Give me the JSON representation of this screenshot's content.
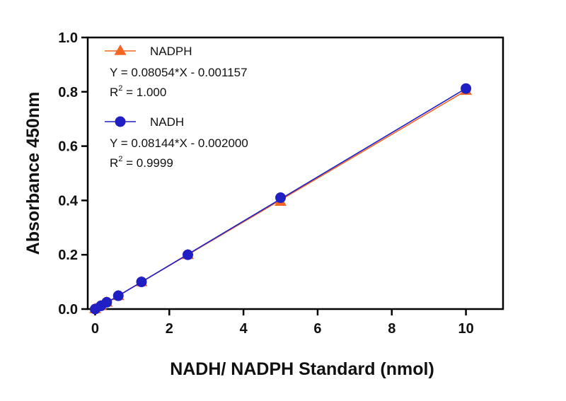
{
  "chart_data": {
    "type": "scatter",
    "xlabel": "NADH/ NADPH Standard (nmol)",
    "ylabel": "Absorbance 450nm",
    "xlim": [
      -0.2,
      11
    ],
    "ylim": [
      0,
      1.0
    ],
    "xticks": [
      0,
      2,
      4,
      6,
      8,
      10
    ],
    "yticks": [
      0.0,
      0.2,
      0.4,
      0.6,
      0.8,
      1.0
    ],
    "xtick_labels": [
      "0",
      "2",
      "4",
      "6",
      "8",
      "10"
    ],
    "ytick_labels": [
      "0.0",
      "0.2",
      "0.4",
      "0.6",
      "0.8",
      "1.0"
    ],
    "grid": false,
    "legend_position": "top-left",
    "series": [
      {
        "name": "NADPH",
        "marker": "triangle",
        "color": "#f26522",
        "x": [
          0,
          0.156,
          0.3125,
          0.625,
          1.25,
          2.5,
          5,
          10
        ],
        "y": [
          0.0,
          0.011,
          0.024,
          0.048,
          0.099,
          0.199,
          0.395,
          0.804
        ],
        "fit_slope": 0.08054,
        "fit_intercept": -0.001157,
        "equation": "Y = 0.08054*X - 0.001157",
        "r2_prefix": "R",
        "r2_sup": "2",
        "r2_value": " = 1.000"
      },
      {
        "name": "NADH",
        "marker": "circle",
        "color": "#1f1fc4",
        "x": [
          0,
          0.156,
          0.3125,
          0.625,
          1.25,
          2.5,
          5,
          10
        ],
        "y": [
          0.0,
          0.012,
          0.025,
          0.049,
          0.1,
          0.2,
          0.41,
          0.812
        ],
        "fit_slope": 0.08144,
        "fit_intercept": -0.002,
        "equation": "Y = 0.08144*X - 0.002000",
        "r2_prefix": "R",
        "r2_sup": "2",
        "r2_value": " = 0.9999"
      }
    ]
  }
}
